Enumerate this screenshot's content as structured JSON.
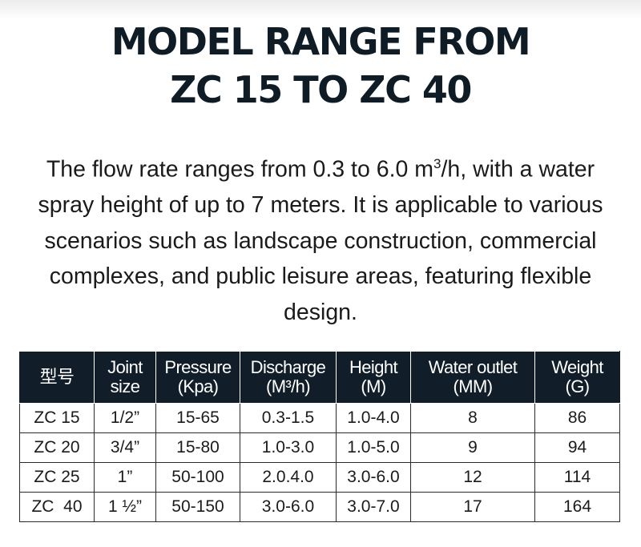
{
  "title": {
    "line1": "MODEL RANGE FROM",
    "line2": "ZC 15 TO ZC 40"
  },
  "description": {
    "part1": "The flow rate ranges from 0.3 to 6.0 m",
    "sup": "3",
    "part2": "/h, with a water spray height of up to 7 meters. It is applicable to various scenarios such as landscape construction, commercial complexes, and public leisure areas, featuring flexible design."
  },
  "table": {
    "headers": [
      {
        "line1": "型号",
        "line2": ""
      },
      {
        "line1": "Joint",
        "line2": "size"
      },
      {
        "line1": "Pressure",
        "line2": "(Kpa)"
      },
      {
        "line1": "Discharge",
        "line2": "(M³/h)"
      },
      {
        "line1": "Height",
        "line2": "(M)"
      },
      {
        "line1": "Water outlet",
        "line2": "(MM)"
      },
      {
        "line1": "Weight",
        "line2": "(G)"
      }
    ],
    "rows": [
      [
        "ZC 15",
        "1/2”",
        "15-65",
        "0.3-1.5",
        "1.0-4.0",
        "8",
        "86"
      ],
      [
        "ZC 20",
        "3/4”",
        "15-80",
        "1.0-3.0",
        "1.0-5.0",
        "9",
        "94"
      ],
      [
        "ZC 25",
        "1”",
        "50-100",
        "2.0.4.0",
        "3.0-6.0",
        "12",
        "114"
      ],
      [
        "ZC  40",
        "1 ½”",
        "50-150",
        "3.0-6.0",
        "3.0-7.0",
        "17",
        "164"
      ]
    ]
  }
}
